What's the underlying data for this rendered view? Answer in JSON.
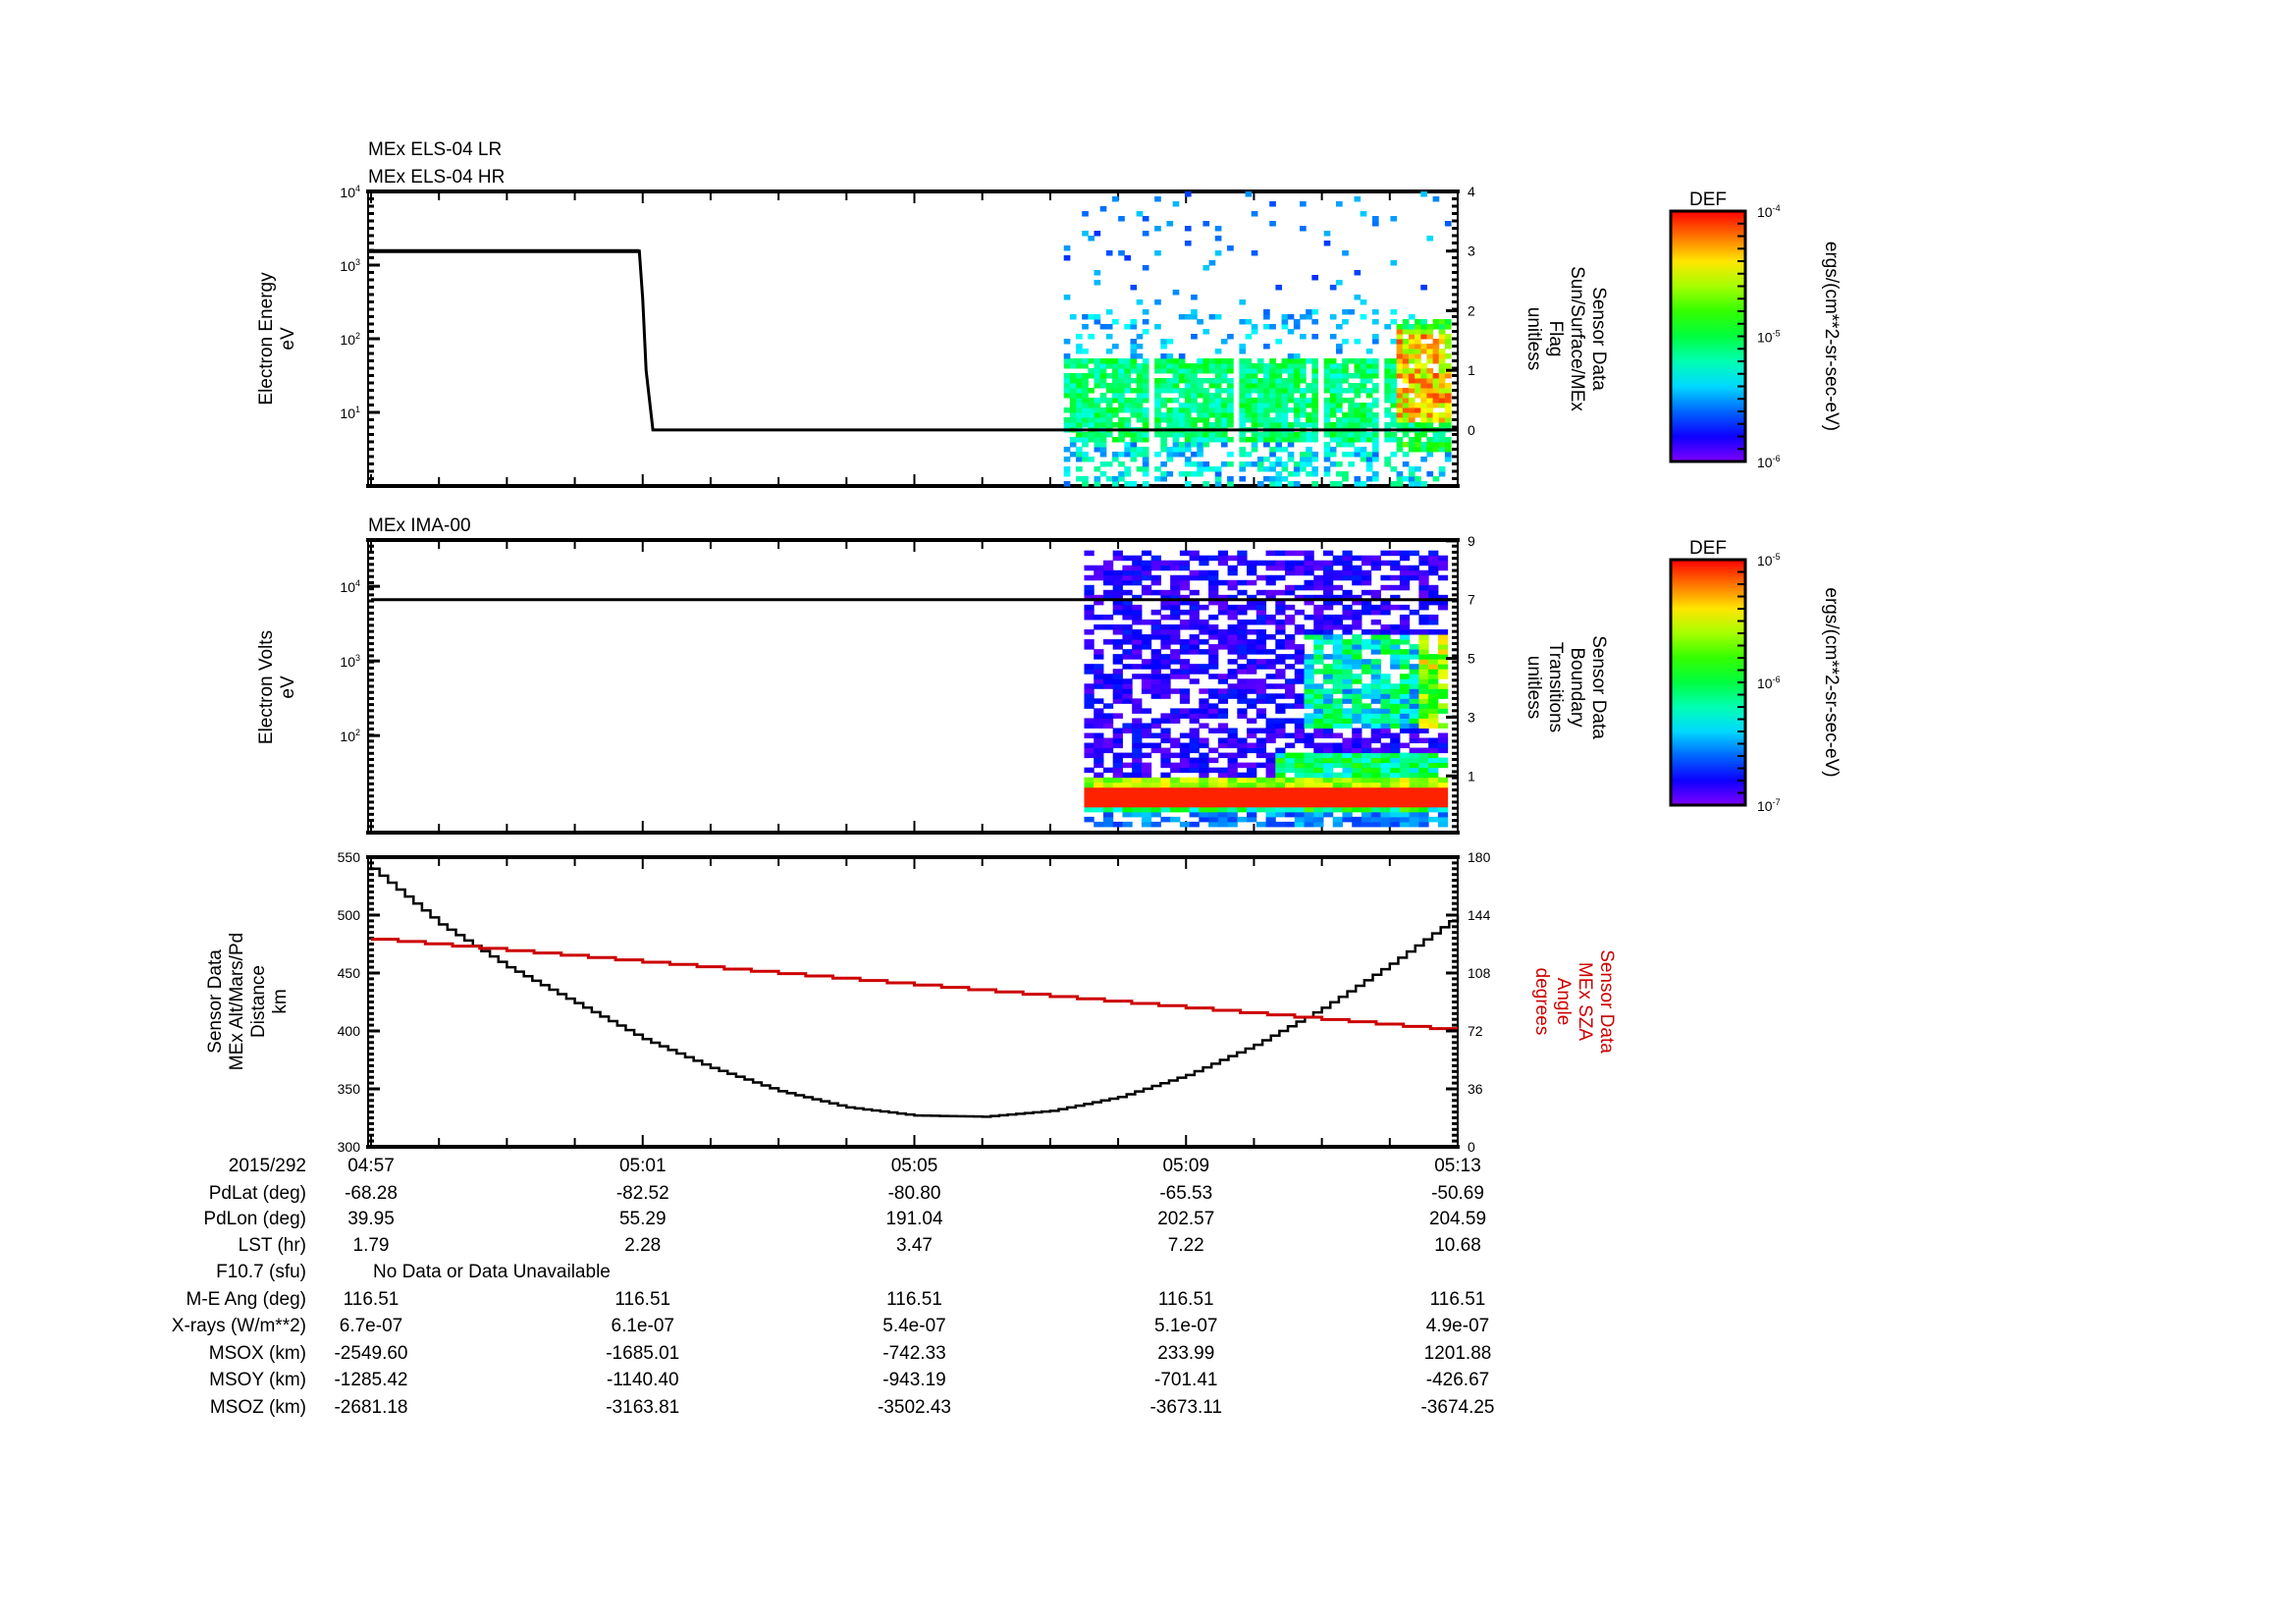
{
  "time_axis": {
    "date": "2015/292",
    "start": "04:57",
    "end_minutes": 16,
    "ticks": [
      {
        "label": "04:57",
        "minutes": 0
      },
      {
        "label": "05:01",
        "minutes": 4
      },
      {
        "label": "05:05",
        "minutes": 8
      },
      {
        "label": "05:09",
        "minutes": 12
      },
      {
        "label": "05:13",
        "minutes": 16
      }
    ]
  },
  "chart_data": [
    {
      "type": "heatmap",
      "titles": [
        "MEx ELS-04 LR",
        "MEx ELS-04 HR"
      ],
      "ylabel": [
        "Electron Energy",
        "eV"
      ],
      "yscale": "log",
      "ylim": [
        1,
        10000
      ],
      "y_ticks": [
        {
          "base": "10",
          "exp": "4",
          "value": 10000
        },
        {
          "base": "10",
          "exp": "3",
          "value": 1000
        },
        {
          "base": "10",
          "exp": "2",
          "value": 100
        },
        {
          "base": "10",
          "exp": "1",
          "value": 10
        }
      ],
      "right_label": [
        "Sensor Data",
        "Sun/Surface/MEx",
        "Flag",
        "unitless"
      ],
      "right_ylim": [
        -0.94,
        4
      ],
      "right_ticks": [
        "0",
        "1",
        "2",
        "3",
        "4"
      ],
      "line_series": {
        "name": "Sun/Surface/MEx Flag",
        "color": "#000000",
        "x_minutes": [
          0,
          3.95,
          4.0,
          4.05,
          4.1,
          4.15,
          16
        ],
        "y": [
          3,
          3,
          2.2,
          1.0,
          0.5,
          0,
          0
        ]
      },
      "spectrogram": {
        "time_range_minutes": [
          10.2,
          15.9
        ],
        "energy_range_eV": [
          1,
          10000
        ],
        "note_peak": "orange/red 10-150 eV after 05:12"
      },
      "colorbar": {
        "title": "DEF",
        "units": "ergs/(cm**2-sr-sec-eV)",
        "range": [
          1e-06,
          0.0001
        ],
        "ticks": [
          {
            "base": "10",
            "exp": "-4"
          },
          {
            "base": "10",
            "exp": "-5"
          },
          {
            "base": "10",
            "exp": "-6"
          }
        ]
      }
    },
    {
      "type": "heatmap",
      "titles": [
        "MEx IMA-00"
      ],
      "ylabel": [
        "Electron Volts",
        "eV"
      ],
      "yscale": "log",
      "ylim": [
        5,
        42000
      ],
      "y_ticks": [
        {
          "base": "10",
          "exp": "4",
          "value": 10000
        },
        {
          "base": "10",
          "exp": "3",
          "value": 1000
        },
        {
          "base": "10",
          "exp": "2",
          "value": 100
        }
      ],
      "right_label": [
        "Sensor Data",
        "Boundary",
        "Transitions",
        "unitless"
      ],
      "right_ylim": [
        -0.93,
        9
      ],
      "right_ticks": [
        "1",
        "3",
        "5",
        "7",
        "9"
      ],
      "line_series": {
        "name": "Boundary Transitions",
        "color": "#000000",
        "x_minutes": [
          0,
          16
        ],
        "y": [
          7,
          7
        ]
      },
      "spectrogram": {
        "time_range_minutes": [
          10.5,
          15.85
        ],
        "energy_range_eV": [
          5,
          28000
        ],
        "note_peak": "red band near 10-20 eV"
      },
      "colorbar": {
        "title": "DEF",
        "units": "ergs/(cm**2-sr-sec-eV)",
        "range": [
          1e-07,
          1e-05
        ],
        "ticks": [
          {
            "base": "10",
            "exp": "-5"
          },
          {
            "base": "10",
            "exp": "-6"
          },
          {
            "base": "10",
            "exp": "-7"
          }
        ]
      }
    },
    {
      "type": "line",
      "ylabel": [
        "Sensor Data",
        "MEx Alt/Mars/Pd",
        "Distance",
        "km"
      ],
      "ylim": [
        300,
        550
      ],
      "y_ticks": [
        "300",
        "350",
        "400",
        "450",
        "500",
        "550"
      ],
      "right_label": [
        "Sensor Data",
        "MEx SZA",
        "Angle",
        "degrees"
      ],
      "right_ylim": [
        0,
        180
      ],
      "right_ticks": [
        "0",
        "36",
        "72",
        "108",
        "144",
        "180"
      ],
      "series": [
        {
          "name": "MEx Alt/Mars/Pd Distance (km)",
          "color": "#000000",
          "axis": "left",
          "x_minutes": [
            0,
            1,
            2,
            3,
            4,
            5,
            6,
            7,
            8,
            9,
            10,
            11,
            12,
            13,
            14,
            15,
            16
          ],
          "y": [
            540,
            492,
            455,
            424,
            393,
            368,
            348,
            334,
            327,
            326,
            331,
            343,
            362,
            388,
            420,
            458,
            500
          ]
        },
        {
          "name": "MEx SZA Angle (degrees)",
          "color": "#cc0000",
          "axis": "right",
          "x_minutes": [
            0,
            16
          ],
          "y": [
            129,
            72
          ]
        }
      ]
    }
  ],
  "ephemeris": [
    {
      "label": "PdLat (deg)",
      "values": [
        "-68.28",
        "-82.52",
        "-80.80",
        "-65.53",
        "-50.69"
      ]
    },
    {
      "label": "PdLon (deg)",
      "values": [
        "39.95",
        "55.29",
        "191.04",
        "202.57",
        "204.59"
      ]
    },
    {
      "label": "LST (hr)",
      "values": [
        "1.79",
        "2.28",
        "3.47",
        "7.22",
        "10.68"
      ]
    },
    {
      "label": "F10.7 (sfu)",
      "text": "No Data or Data Unavailable"
    },
    {
      "label": "M-E Ang (deg)",
      "values": [
        "116.51",
        "116.51",
        "116.51",
        "116.51",
        "116.51"
      ]
    },
    {
      "label": "X-rays (W/m**2)",
      "values": [
        "6.7e-07",
        "6.1e-07",
        "5.4e-07",
        "5.1e-07",
        "4.9e-07"
      ]
    },
    {
      "label": "MSOX (km)",
      "values": [
        "-2549.60",
        "-1685.01",
        "-742.33",
        "233.99",
        "1201.88"
      ]
    },
    {
      "label": "MSOY (km)",
      "values": [
        "-1285.42",
        "-1140.40",
        "-943.19",
        "-701.41",
        "-426.67"
      ]
    },
    {
      "label": "MSOZ (km)",
      "values": [
        "-2681.18",
        "-3163.81",
        "-3502.43",
        "-3673.11",
        "-3674.25"
      ]
    }
  ]
}
